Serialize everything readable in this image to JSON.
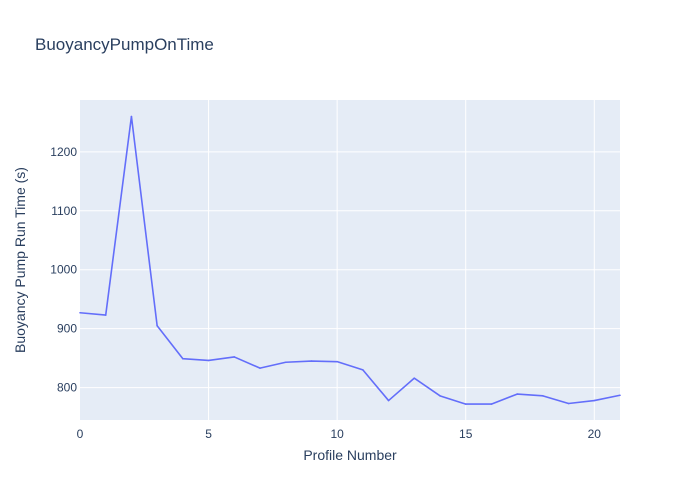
{
  "chart_data": {
    "type": "line",
    "title": "BuoyancyPumpOnTime",
    "xlabel": "Profile Number",
    "ylabel": "Buoyancy Pump Run Time (s)",
    "xlim": [
      0,
      21
    ],
    "ylim": [
      745,
      1288
    ],
    "xticks": [
      0,
      5,
      10,
      15,
      20
    ],
    "yticks": [
      800,
      900,
      1000,
      1100,
      1200
    ],
    "grid": true,
    "series": [
      {
        "color": "#636efa",
        "x": [
          0,
          1,
          2,
          3,
          4,
          5,
          6,
          7,
          8,
          9,
          10,
          11,
          12,
          13,
          14,
          15,
          16,
          17,
          18,
          19,
          20,
          21
        ],
        "values": [
          927,
          923,
          1260,
          905,
          849,
          846,
          852,
          833,
          843,
          845,
          844,
          830,
          778,
          816,
          786,
          772,
          772,
          789,
          786,
          773,
          778,
          787
        ]
      }
    ]
  }
}
